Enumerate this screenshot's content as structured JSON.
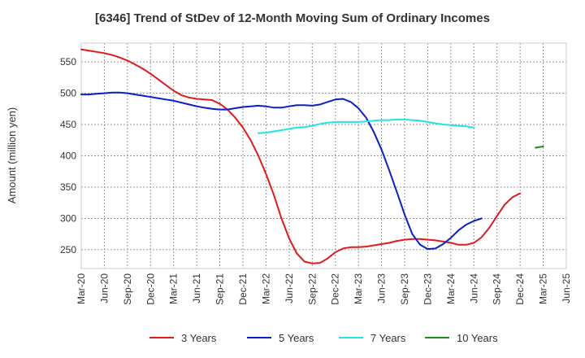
{
  "title": "[6346]  Trend of StDev of 12-Month Moving Sum of Ordinary Incomes",
  "chart_data": {
    "type": "line",
    "title": "[6346]  Trend of StDev of 12-Month Moving Sum of Ordinary Incomes",
    "xlabel": "",
    "ylabel": "Amount (million yen)",
    "x_ticks": [
      "Mar-20",
      "Jun-20",
      "Sep-20",
      "Dec-20",
      "Mar-21",
      "Jun-21",
      "Sep-21",
      "Dec-21",
      "Mar-22",
      "Jun-22",
      "Sep-22",
      "Dec-22",
      "Mar-23",
      "Jun-23",
      "Sep-23",
      "Dec-23",
      "Mar-24",
      "Jun-24",
      "Sep-24",
      "Dec-24",
      "Mar-25",
      "Jun-25"
    ],
    "y_ticks": [
      250,
      300,
      350,
      400,
      450,
      500,
      550
    ],
    "ylim": [
      220,
      580
    ],
    "grid": true,
    "legend_position": "bottom",
    "series": [
      {
        "name": "3 Years",
        "color": "#e31a1c",
        "start": "Mar-20",
        "values": [
          570,
          568,
          566,
          564,
          561,
          557,
          552,
          546,
          539,
          531,
          522,
          513,
          504,
          497,
          493,
          491,
          490,
          489,
          483,
          474,
          461,
          445,
          425,
          400,
          371,
          338,
          300,
          268,
          244,
          231,
          228,
          229,
          236,
          246,
          252,
          254,
          254,
          255,
          257,
          259,
          261,
          264,
          266,
          267,
          267,
          266,
          265,
          263,
          261,
          258,
          258,
          261,
          270,
          285,
          304,
          322,
          334,
          340
        ]
      },
      {
        "name": "5 Years",
        "color": "#0a1ecc",
        "start": "Mar-20",
        "values": [
          498,
          498,
          499,
          500,
          501,
          501,
          500,
          498,
          496,
          494,
          492,
          490,
          488,
          485,
          482,
          479,
          477,
          475,
          474,
          474,
          476,
          478,
          479,
          480,
          479,
          477,
          477,
          479,
          481,
          481,
          480,
          482,
          486,
          490,
          491,
          486,
          476,
          461,
          438,
          410,
          377,
          342,
          306,
          275,
          258,
          251,
          252,
          259,
          269,
          281,
          290,
          296,
          300
        ]
      },
      {
        "name": "7 Years",
        "color": "#1ee6e6",
        "start": "Feb-22",
        "values": [
          436,
          437,
          439,
          441,
          443,
          445,
          446,
          448,
          451,
          453,
          454,
          454,
          454,
          454,
          455,
          456,
          457,
          457,
          458,
          458,
          457,
          456,
          454,
          452,
          450,
          449,
          448,
          447,
          445
        ]
      },
      {
        "name": "10 Years",
        "color": "#1e8c1e",
        "start": "Feb-25",
        "values": [
          413,
          415
        ]
      }
    ]
  }
}
